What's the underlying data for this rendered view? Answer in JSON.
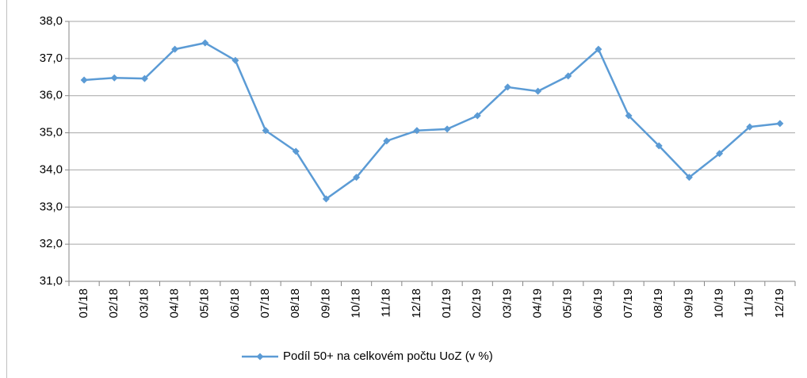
{
  "chart_data": {
    "type": "line",
    "categories": [
      "01/18",
      "02/18",
      "03/18",
      "04/18",
      "05/18",
      "06/18",
      "07/18",
      "08/18",
      "09/18",
      "10/18",
      "11/18",
      "12/18",
      "01/19",
      "02/19",
      "03/19",
      "04/19",
      "05/19",
      "06/19",
      "07/19",
      "08/19",
      "09/19",
      "10/19",
      "11/19",
      "12/19"
    ],
    "series": [
      {
        "name": "Podíl 50+ na celkovém počtu UoZ (v %)",
        "color": "#5b9bd5",
        "values": [
          36.42,
          36.48,
          36.46,
          37.25,
          37.42,
          36.95,
          35.06,
          34.5,
          33.22,
          33.8,
          34.78,
          35.06,
          35.1,
          35.46,
          36.23,
          36.12,
          36.53,
          37.25,
          35.46,
          34.65,
          33.8,
          34.44,
          35.16,
          35.25
        ]
      }
    ],
    "ylim": [
      31,
      38
    ],
    "yticks": [
      {
        "value": 31,
        "label": "31,0"
      },
      {
        "value": 32,
        "label": "32,0"
      },
      {
        "value": 33,
        "label": "33,0"
      },
      {
        "value": 34,
        "label": "34,0"
      },
      {
        "value": 35,
        "label": "35,0"
      },
      {
        "value": 36,
        "label": "36,0"
      },
      {
        "value": 37,
        "label": "37,0"
      },
      {
        "value": 38,
        "label": "38,0"
      }
    ],
    "grid": true,
    "legend": "bottom"
  }
}
